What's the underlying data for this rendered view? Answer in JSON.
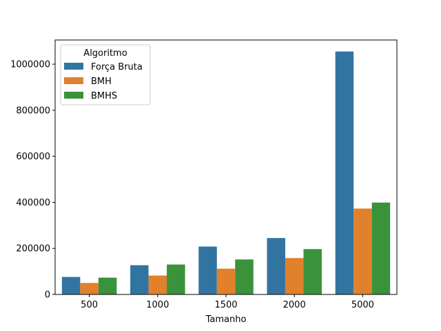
{
  "chart_data": {
    "type": "bar",
    "xlabel": "Tamanho",
    "ylabel": "",
    "categories": [
      "500",
      "1000",
      "1500",
      "2000",
      "5000"
    ],
    "ylim": [
      0,
      1105000
    ],
    "yticks": [
      0,
      200000,
      400000,
      600000,
      800000,
      1000000
    ],
    "ytick_labels": [
      "0",
      "200000",
      "400000",
      "600000",
      "800000",
      "1000000"
    ],
    "legend": {
      "title": "Algoritmo",
      "placement": "top-left"
    },
    "series": [
      {
        "name": "Força Bruta",
        "color": "#3274a1",
        "values": [
          76000,
          127000,
          208000,
          245000,
          1055000
        ]
      },
      {
        "name": "BMH",
        "color": "#e1812c",
        "values": [
          50000,
          82000,
          112000,
          158000,
          373000
        ]
      },
      {
        "name": "BMHS",
        "color": "#3a923a",
        "values": [
          73000,
          130000,
          152000,
          197000,
          399000
        ]
      }
    ]
  }
}
